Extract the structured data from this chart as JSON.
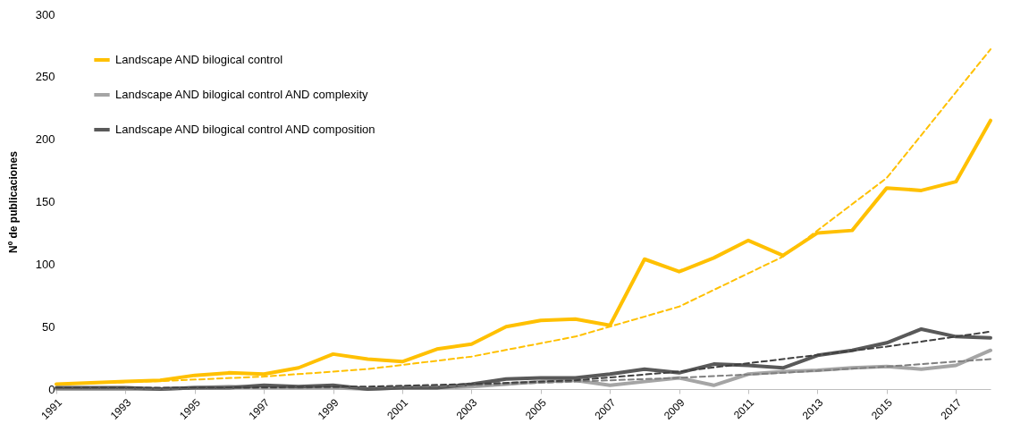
{
  "chart_data": {
    "type": "line",
    "ylabel": "Nº de publicaciones",
    "xlim": [
      1991,
      2018
    ],
    "xticks": [
      1991,
      1993,
      1995,
      1997,
      1999,
      2001,
      2003,
      2005,
      2007,
      2009,
      2011,
      2013,
      2015,
      2017
    ],
    "ylim": [
      0,
      300
    ],
    "yticks": [
      0,
      50,
      100,
      150,
      200,
      250,
      300
    ],
    "grid": false,
    "legend": "top left",
    "marker": "none",
    "x": [
      1991,
      1992,
      1993,
      1994,
      1995,
      1996,
      1997,
      1998,
      1999,
      2000,
      2001,
      2002,
      2003,
      2004,
      2005,
      2006,
      2007,
      2008,
      2009,
      2010,
      2011,
      2012,
      2013,
      2014,
      2015,
      2016,
      2017,
      2018
    ],
    "series": [
      {
        "name": "Landscape AND bilogical control",
        "color": "#ffc000",
        "line_style": "solid",
        "values": [
          4,
          5,
          6,
          7,
          11,
          13,
          12,
          17,
          28,
          24,
          22,
          32,
          36,
          50,
          55,
          56,
          51,
          104,
          94,
          105,
          119,
          107,
          125,
          127,
          161,
          159,
          166,
          215
        ]
      },
      {
        "name": "Landscape AND bilogical control AND complexity",
        "color": "#a5a5a5",
        "line_style": "solid",
        "values": [
          0,
          0,
          0,
          0,
          1,
          2,
          1,
          1,
          1,
          0,
          1,
          1,
          2,
          4,
          6,
          7,
          3,
          6,
          9,
          3,
          12,
          14,
          15,
          17,
          18,
          16,
          19,
          31
        ]
      },
      {
        "name": "Landscape AND bilogical control AND composition",
        "color": "#595959",
        "line_style": "solid",
        "values": [
          1,
          1,
          1,
          0,
          1,
          1,
          3,
          2,
          3,
          0,
          1,
          1,
          4,
          8,
          9,
          9,
          12,
          16,
          13,
          20,
          19,
          17,
          27,
          31,
          37,
          48,
          42,
          41
        ]
      },
      {
        "type": "line",
        "color": "#ffc000",
        "line_style": "dashed",
        "x": [
          1991,
          1994,
          1997,
          2000,
          2003,
          2006,
          2009,
          2012,
          2015,
          2018
        ],
        "values": [
          4,
          6.4,
          10,
          16,
          26,
          42,
          66,
          106,
          169,
          272
        ]
      },
      {
        "type": "line",
        "color": "#7f7f7f",
        "line_style": "dashed",
        "x": [
          1991,
          1995,
          2000,
          2003,
          2006,
          2009,
          2012,
          2015,
          2018
        ],
        "values": [
          0,
          0.5,
          1.5,
          3,
          6,
          9,
          13,
          18,
          24
        ]
      },
      {
        "type": "line",
        "color": "#404040",
        "line_style": "dashed",
        "x": [
          1991,
          1995,
          2000,
          2003,
          2006,
          2009,
          2012,
          2015,
          2018
        ],
        "values": [
          1,
          1,
          2,
          4,
          7,
          14,
          24,
          34,
          46
        ]
      }
    ]
  }
}
